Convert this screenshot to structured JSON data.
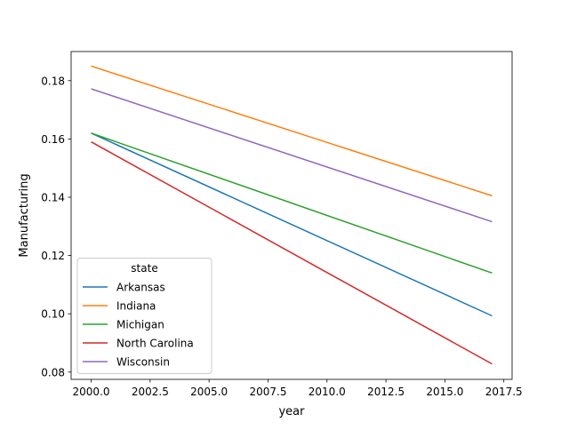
{
  "chart_data": {
    "type": "line",
    "title": "",
    "xlabel": "year",
    "ylabel": "Manufacturing",
    "xlim": [
      1999.15,
      2017.85
    ],
    "ylim": [
      0.0775,
      0.19
    ],
    "xticks": [
      2000.0,
      2002.5,
      2005.0,
      2007.5,
      2010.0,
      2012.5,
      2015.0,
      2017.5
    ],
    "xtick_labels": [
      "2000.0",
      "2002.5",
      "2005.0",
      "2007.5",
      "2010.0",
      "2012.5",
      "2015.0",
      "2017.5"
    ],
    "yticks": [
      0.08,
      0.1,
      0.12,
      0.14,
      0.16,
      0.18
    ],
    "ytick_labels": [
      "0.08",
      "0.10",
      "0.12",
      "0.14",
      "0.16",
      "0.18"
    ],
    "grid": false,
    "legend": {
      "title": "state",
      "placement": "lower-left"
    },
    "series": [
      {
        "name": "Arkansas",
        "color": "#1f77b4",
        "x": [
          2000,
          2017
        ],
        "y": [
          0.162,
          0.0993
        ]
      },
      {
        "name": "Indiana",
        "color": "#ff7f0e",
        "x": [
          2000,
          2017
        ],
        "y": [
          0.185,
          0.1405
        ]
      },
      {
        "name": "Michigan",
        "color": "#2ca02c",
        "x": [
          2000,
          2017
        ],
        "y": [
          0.162,
          0.114
        ]
      },
      {
        "name": "North Carolina",
        "color": "#d62728",
        "x": [
          2000,
          2017
        ],
        "y": [
          0.159,
          0.0828
        ]
      },
      {
        "name": "Wisconsin",
        "color": "#9467bd",
        "x": [
          2000,
          2017
        ],
        "y": [
          0.1772,
          0.1316
        ]
      }
    ]
  }
}
